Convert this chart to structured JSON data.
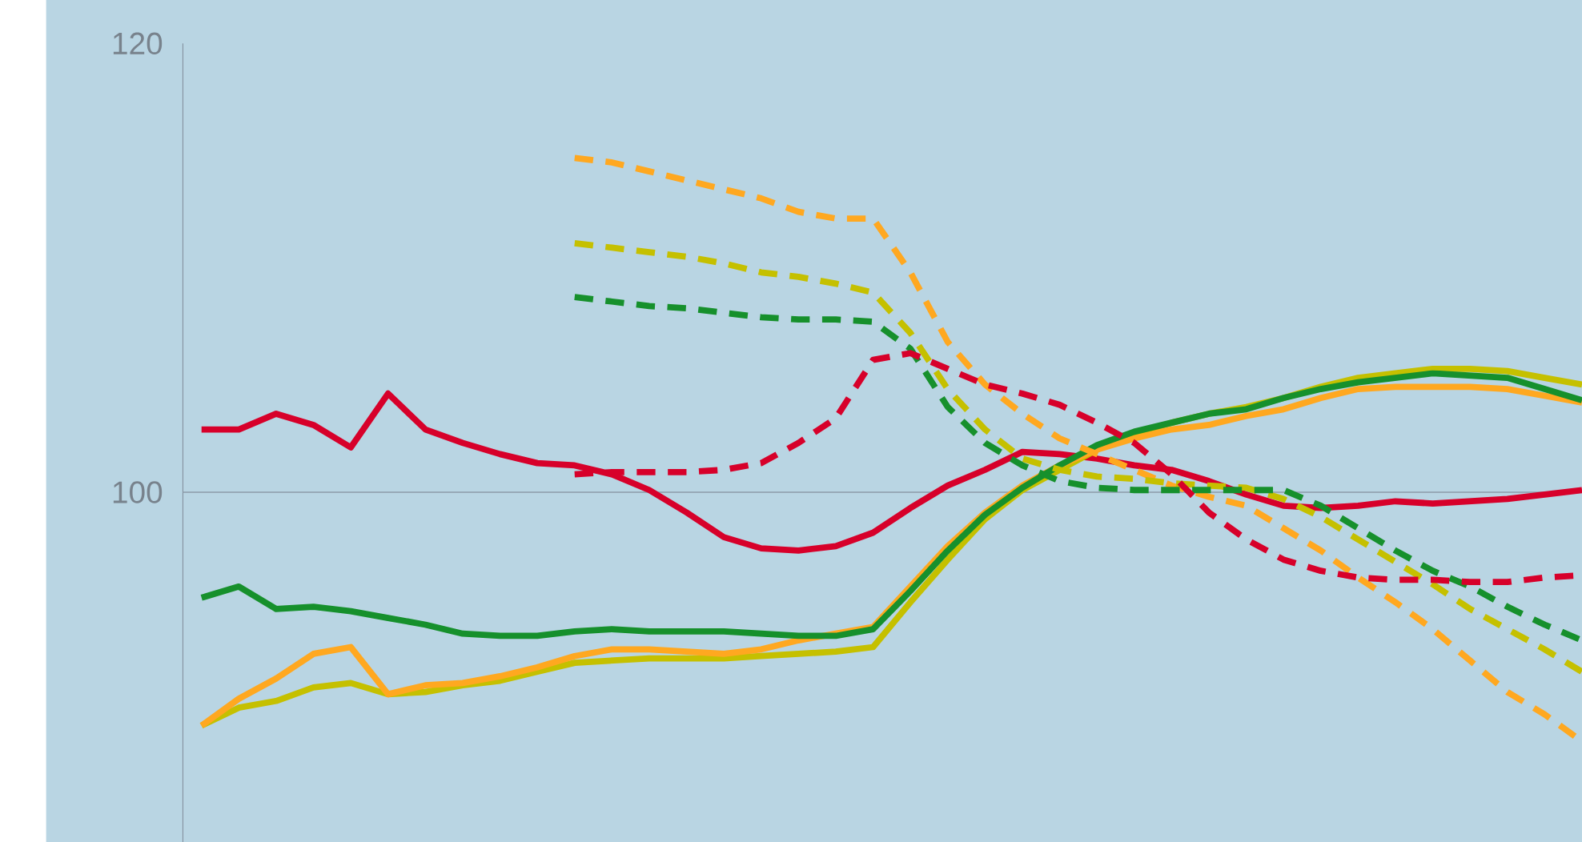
{
  "chart_data": {
    "type": "line",
    "categories": [
      null,
      null,
      null,
      null,
      null,
      null,
      null,
      null,
      null,
      null,
      null,
      null,
      null,
      null,
      null,
      null,
      null,
      null,
      null,
      null,
      null,
      null,
      null,
      null,
      null,
      null,
      null,
      null,
      null,
      null,
      null,
      null,
      null,
      null,
      null,
      null,
      null,
      null
    ],
    "series": [
      {
        "color": "#d7002a",
        "line_style": "solid",
        "values": [
          102.8,
          102.8,
          103.5,
          103.0,
          102.0,
          104.4,
          102.8,
          102.2,
          101.7,
          101.3,
          101.2,
          100.8,
          100.1,
          99.1,
          98.0,
          97.5,
          97.4,
          97.6,
          98.2,
          99.3,
          100.3,
          101.0,
          101.8,
          101.7,
          101.5,
          101.2,
          101.0,
          100.5,
          99.9,
          99.4,
          99.3,
          99.4,
          99.6,
          99.5,
          99.6,
          99.7,
          99.9,
          100.1
        ]
      },
      {
        "color": "#c5c000",
        "line_style": "solid",
        "values": [
          89.6,
          90.4,
          90.7,
          91.3,
          91.5,
          91.0,
          91.1,
          91.4,
          91.6,
          92.0,
          92.4,
          92.5,
          92.6,
          92.6,
          92.6,
          92.7,
          92.8,
          92.9,
          93.1,
          95.1,
          97.0,
          98.8,
          100.1,
          101.0,
          101.9,
          102.6,
          103.1,
          103.5,
          103.8,
          104.2,
          104.7,
          105.1,
          105.3,
          105.5,
          105.5,
          105.4,
          105.1,
          104.8
        ]
      },
      {
        "color": "#ffa820",
        "line_style": "solid",
        "values": [
          89.6,
          90.8,
          91.7,
          92.8,
          93.1,
          91.0,
          91.4,
          91.5,
          91.8,
          92.2,
          92.7,
          93.0,
          93.0,
          92.9,
          92.8,
          93.0,
          93.4,
          93.7,
          94.0,
          95.8,
          97.6,
          99.1,
          100.3,
          101.2,
          101.9,
          102.4,
          102.8,
          103.0,
          103.4,
          103.7,
          104.2,
          104.6,
          104.7,
          104.7,
          104.7,
          104.6,
          104.3,
          104.0
        ]
      },
      {
        "color": "#16902c",
        "line_style": "solid",
        "values": [
          95.3,
          95.8,
          94.8,
          94.9,
          94.7,
          94.4,
          94.1,
          93.7,
          93.6,
          93.6,
          93.8,
          93.9,
          93.8,
          93.8,
          93.8,
          93.7,
          93.6,
          93.6,
          93.9,
          95.6,
          97.4,
          99.0,
          100.2,
          101.2,
          102.1,
          102.7,
          103.1,
          103.5,
          103.7,
          104.2,
          104.6,
          104.9,
          105.1,
          105.3,
          105.2,
          105.1,
          104.6,
          104.1
        ]
      },
      {
        "color": "#ffa820",
        "line_style": "dashed",
        "values": [
          null,
          null,
          null,
          null,
          null,
          null,
          null,
          null,
          null,
          null,
          114.9,
          114.7,
          114.3,
          113.9,
          113.5,
          113.1,
          112.5,
          112.2,
          112.2,
          109.8,
          106.7,
          104.8,
          103.5,
          102.4,
          101.7,
          101.0,
          100.3,
          99.8,
          99.4,
          98.4,
          97.4,
          96.2,
          95.1,
          93.9,
          92.5,
          91.1,
          90.1,
          88.9
        ]
      },
      {
        "color": "#c5c000",
        "line_style": "dashed",
        "values": [
          null,
          null,
          null,
          null,
          null,
          null,
          null,
          null,
          null,
          null,
          111.1,
          110.9,
          110.7,
          110.5,
          110.2,
          109.8,
          109.6,
          109.3,
          108.9,
          107.1,
          104.6,
          102.8,
          101.5,
          101.0,
          100.7,
          100.6,
          100.4,
          100.3,
          100.2,
          99.7,
          98.9,
          97.9,
          96.9,
          95.9,
          94.8,
          93.9,
          93.0,
          92.0
        ]
      },
      {
        "color": "#16902c",
        "line_style": "dashed",
        "values": [
          null,
          null,
          null,
          null,
          null,
          null,
          null,
          null,
          null,
          null,
          108.7,
          108.5,
          108.3,
          108.2,
          108.0,
          107.8,
          107.7,
          107.7,
          107.6,
          106.4,
          103.8,
          102.2,
          101.2,
          100.5,
          100.2,
          100.1,
          100.1,
          100.1,
          100.1,
          100.1,
          99.4,
          98.4,
          97.4,
          96.5,
          95.8,
          94.9,
          94.1,
          93.4
        ]
      },
      {
        "color": "#d7002a",
        "line_style": "dashed",
        "values": [
          null,
          null,
          null,
          null,
          null,
          null,
          null,
          null,
          null,
          null,
          100.8,
          100.9,
          100.9,
          100.9,
          101.0,
          101.3,
          102.2,
          103.3,
          105.9,
          106.2,
          105.5,
          104.8,
          104.4,
          103.9,
          103.1,
          102.2,
          100.8,
          99.1,
          97.9,
          97.0,
          96.5,
          96.2,
          96.1,
          96.1,
          96.0,
          96.0,
          96.2,
          96.3
        ]
      }
    ],
    "ylim": [
      84.4,
      120
    ],
    "yticks": [
      100,
      120
    ],
    "ref_lines": [
      {
        "axis": "y",
        "value": 100,
        "color": "#8c9aa8"
      }
    ]
  }
}
